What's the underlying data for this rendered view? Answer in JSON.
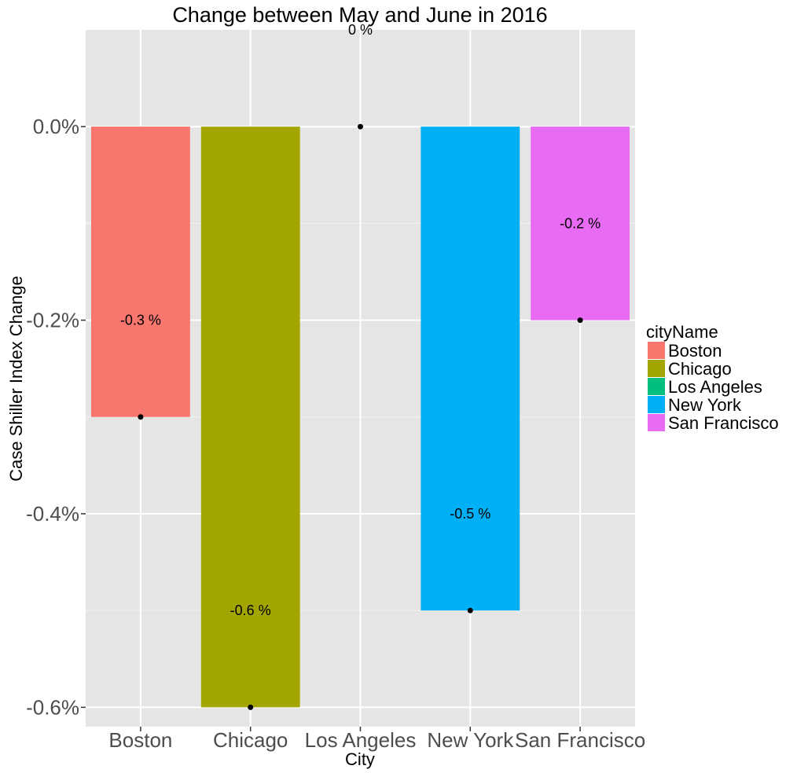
{
  "chart_data": {
    "type": "bar",
    "title": "Change between May and June in 2016",
    "xlabel": "City",
    "ylabel": "Case Shiller Index Change",
    "categories": [
      "Boston",
      "Chicago",
      "Los Angeles",
      "New York",
      "San Francisco"
    ],
    "values": [
      -0.3,
      -0.6,
      0.0,
      -0.5,
      -0.2
    ],
    "data_labels": [
      "-0.3 %",
      "-0.6 %",
      "0 %",
      "-0.5 %",
      "-0.2 %"
    ],
    "colors": [
      "#F8766D",
      "#A3A500",
      "#00BF7D",
      "#00B0F6",
      "#E76BF3"
    ],
    "point_color": "#000000",
    "ylim": [
      -0.62,
      0.1
    ],
    "yticks": [
      0.0,
      -0.2,
      -0.4,
      -0.6
    ],
    "ytick_labels": [
      "0.0%",
      "-0.2%",
      "-0.4%",
      "-0.6%"
    ],
    "grid": true,
    "panel_background": "#E5E5E5",
    "legend": {
      "title": "cityName",
      "position": "right",
      "items": [
        "Boston",
        "Chicago",
        "Los Angeles",
        "New York",
        "San Francisco"
      ]
    }
  }
}
